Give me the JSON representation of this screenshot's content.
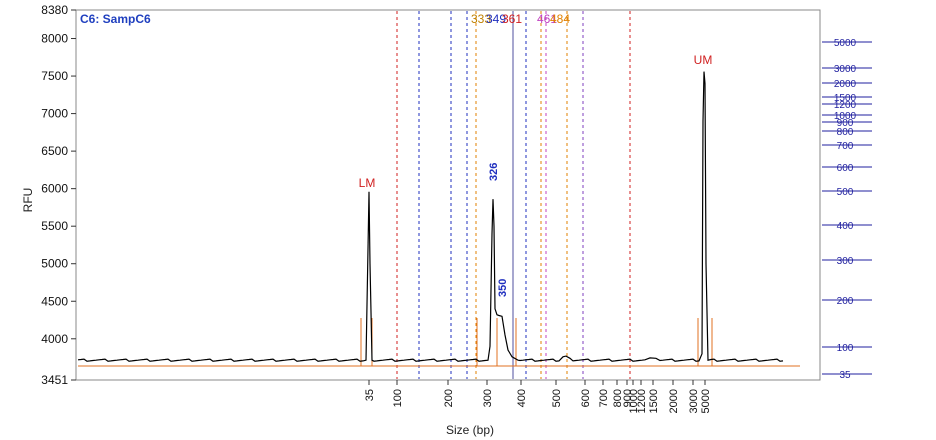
{
  "chart_data": {
    "type": "line",
    "title": "C6: SampC6",
    "xlabel": "Size (bp)",
    "ylabel": "RFU",
    "ylim": [
      3451,
      8380
    ],
    "yticks": [
      3451,
      4000,
      4500,
      5000,
      5500,
      6000,
      6500,
      7000,
      7500,
      8000,
      8380
    ],
    "xticks": [
      "35",
      "100",
      "200",
      "300",
      "400",
      "500",
      "600",
      "700",
      "800",
      "900",
      "1000",
      "1200",
      "1500",
      "2000",
      "3000",
      "5000"
    ],
    "right_axis_ticks": [
      "5000",
      "3000",
      "2000",
      "1500",
      "1200",
      "1000",
      "900",
      "800",
      "700",
      "600",
      "500",
      "400",
      "300",
      "200",
      "100",
      "35"
    ],
    "series": [
      {
        "x": [
          "35",
          "36",
          "100",
          "200",
          "300",
          "326",
          "335",
          "350",
          "370",
          "400",
          "500",
          "540",
          "600",
          "1000",
          "2000",
          "4900",
          "5000",
          "5100"
        ],
        "values": [
          3720,
          5960,
          3710,
          3710,
          3740,
          5860,
          4320,
          4300,
          3760,
          3720,
          3720,
          3770,
          3720,
          3730,
          3720,
          3740,
          7560,
          3720
        ]
      }
    ],
    "peak_labels": [
      {
        "text": "LM",
        "x": "35",
        "y": 5960
      },
      {
        "text": "326",
        "x": "326",
        "y": 5860
      },
      {
        "text": "350",
        "x": "350",
        "y": 4300
      },
      {
        "text": "UM",
        "x": "5000",
        "y": 7560
      }
    ],
    "region_markers": [
      {
        "text": "333",
        "color": "#c08000"
      },
      {
        "text": "349",
        "color": "#1f2fbf"
      },
      {
        "text": "361",
        "color": "#d01f1f"
      },
      {
        "text": "461",
        "color": "#c040c0"
      },
      {
        "text": "484",
        "color": "#e08000"
      }
    ],
    "colors": {
      "trace": "#000000",
      "ladder": "#e07020",
      "red_marker": "#d01f1f",
      "blue_marker": "#1f2fbf",
      "orange_marker": "#e08000",
      "right_axis": "#1f1f9f"
    }
  }
}
